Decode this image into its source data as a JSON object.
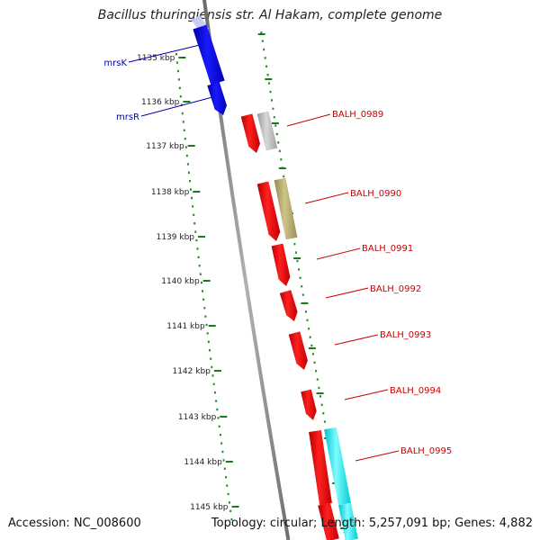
{
  "title": "Bacillus thuringiensis str. Al Hakam, complete genome",
  "footer": {
    "accession": "Accession: NC_008600",
    "summary": "Topology: circular; Length: 5,257,091 bp; Genes: 4,882"
  },
  "colors": {
    "backbone": "#808080",
    "tick_major": "#1a7a1a",
    "tick_minor": "#2a8a2a",
    "gene_red": "#ee0000",
    "gene_blue": "#0000dd",
    "gene_grey": "#bbbbbb",
    "gene_olive": "#b5aa6e",
    "gene_cyan": "#00e8f0",
    "label_red": "#cc0000",
    "label_blue": "#0000aa"
  },
  "ruler": {
    "unit": "kbp",
    "ticks": [
      "1135",
      "1136",
      "1137",
      "1138",
      "1139",
      "1140",
      "1141",
      "1142",
      "1143",
      "1144",
      "1145"
    ]
  },
  "gene_labels": [
    {
      "id": "mrsK",
      "text": "mrsK",
      "color": "blue"
    },
    {
      "id": "mrsR",
      "text": "mrsR",
      "color": "blue"
    },
    {
      "id": "BALH_0989",
      "text": "BALH_0989",
      "color": "red"
    },
    {
      "id": "BALH_0990",
      "text": "BALH_0990",
      "color": "red"
    },
    {
      "id": "BALH_0991",
      "text": "BALH_0991",
      "color": "red"
    },
    {
      "id": "BALH_0992",
      "text": "BALH_0992",
      "color": "red"
    },
    {
      "id": "BALH_0993",
      "text": "BALH_0993",
      "color": "red"
    },
    {
      "id": "BALH_0994",
      "text": "BALH_0994",
      "color": "red"
    },
    {
      "id": "BALH_0995",
      "text": "BALH_0995",
      "color": "red"
    }
  ]
}
